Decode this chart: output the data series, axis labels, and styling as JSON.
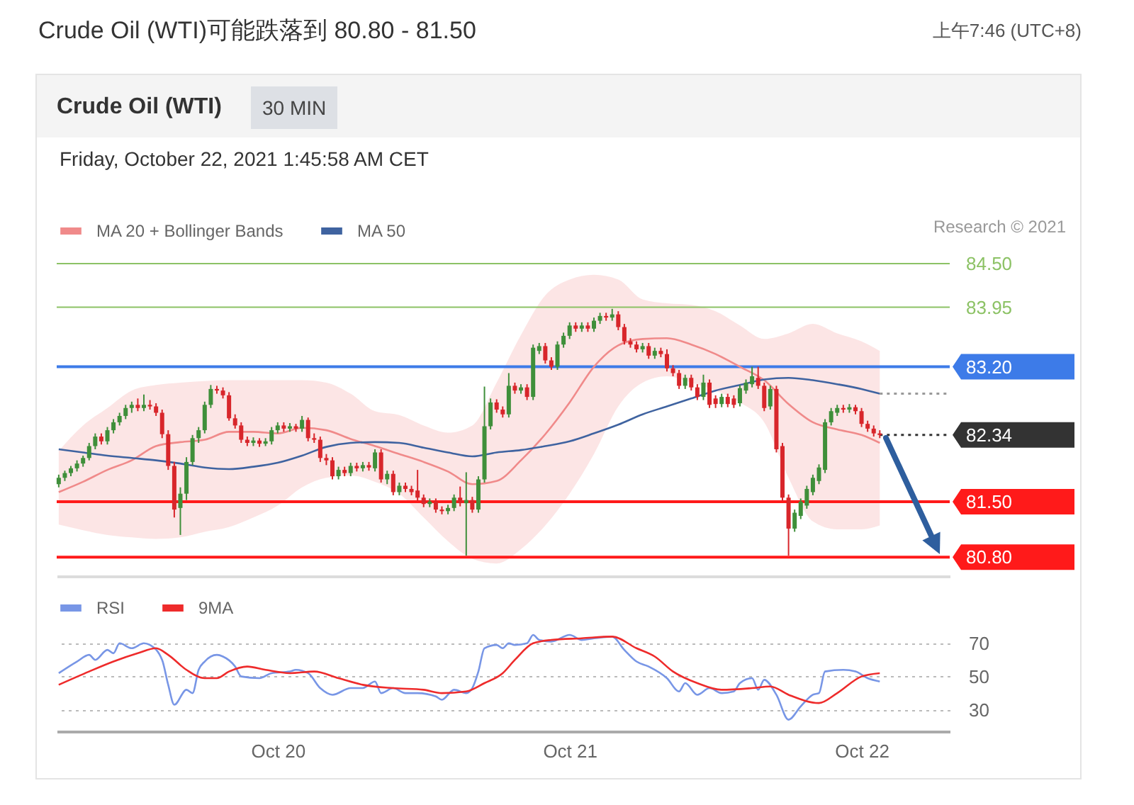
{
  "chart_data": [
    {
      "type": "candlestick",
      "title": "Crude Oil (WTI)可能跌落到 80.80 - 81.50",
      "subtitle": "Crude Oil (WTI)",
      "annotations": [
        "上午7:46 (UTC+8)",
        "30 MIN",
        "Friday, October 22, 2021 1:45:58 AM CET",
        "Research © 2021"
      ],
      "x": [
        "2021-10-19T06:00",
        "2021-10-19T06:30",
        "2021-10-19T07:00",
        "2021-10-19T07:30",
        "2021-10-19T08:00",
        "2021-10-19T08:30",
        "2021-10-19T09:00",
        "2021-10-19T09:30",
        "2021-10-19T10:00",
        "2021-10-19T10:30",
        "2021-10-19T11:00",
        "2021-10-19T11:30",
        "2021-10-19T12:00",
        "2021-10-19T12:30",
        "2021-10-19T13:00",
        "2021-10-19T13:30",
        "2021-10-19T14:00",
        "2021-10-19T14:30",
        "2021-10-19T15:00",
        "2021-10-19T15:30",
        "2021-10-19T16:00",
        "2021-10-19T16:30",
        "2021-10-19T17:00",
        "2021-10-19T17:30",
        "2021-10-19T18:00",
        "2021-10-19T18:30",
        "2021-10-19T19:00",
        "2021-10-19T19:30",
        "2021-10-19T20:00",
        "2021-10-19T20:30",
        "2021-10-19T21:00",
        "2021-10-19T21:30",
        "2021-10-19T22:00",
        "2021-10-19T22:30",
        "2021-10-19T23:00",
        "2021-10-19T23:30",
        "2021-10-20T00:00",
        "2021-10-20T00:30",
        "2021-10-20T01:00",
        "2021-10-20T01:30",
        "2021-10-20T02:00",
        "2021-10-20T02:30",
        "2021-10-20T03:00",
        "2021-10-20T03:30",
        "2021-10-20T04:00",
        "2021-10-20T04:30",
        "2021-10-20T05:00",
        "2021-10-20T05:30",
        "2021-10-20T06:00",
        "2021-10-20T06:30",
        "2021-10-20T07:00",
        "2021-10-20T07:30",
        "2021-10-20T08:00",
        "2021-10-20T08:30",
        "2021-10-20T09:00",
        "2021-10-20T09:30",
        "2021-10-20T10:00",
        "2021-10-20T10:30",
        "2021-10-20T11:00",
        "2021-10-20T11:30",
        "2021-10-20T12:00",
        "2021-10-20T12:30",
        "2021-10-20T13:00",
        "2021-10-20T13:30",
        "2021-10-20T14:00",
        "2021-10-20T14:30",
        "2021-10-20T15:00",
        "2021-10-20T15:30",
        "2021-10-20T16:00",
        "2021-10-20T16:30",
        "2021-10-20T17:00",
        "2021-10-20T17:30",
        "2021-10-20T18:00",
        "2021-10-20T18:30",
        "2021-10-20T19:00",
        "2021-10-20T19:30",
        "2021-10-20T20:00",
        "2021-10-20T20:30",
        "2021-10-20T21:00",
        "2021-10-20T21:30",
        "2021-10-20T22:00",
        "2021-10-20T22:30",
        "2021-10-20T23:00",
        "2021-10-20T23:30",
        "2021-10-21T00:00",
        "2021-10-21T00:30",
        "2021-10-21T01:00",
        "2021-10-21T01:30",
        "2021-10-21T02:00",
        "2021-10-21T02:30",
        "2021-10-21T03:00",
        "2021-10-21T03:30",
        "2021-10-21T04:00",
        "2021-10-21T04:30",
        "2021-10-21T05:00",
        "2021-10-21T05:30",
        "2021-10-21T06:00",
        "2021-10-21T06:30",
        "2021-10-21T07:00",
        "2021-10-21T07:30",
        "2021-10-21T08:00",
        "2021-10-21T08:30",
        "2021-10-21T09:00",
        "2021-10-21T09:30",
        "2021-10-21T10:00",
        "2021-10-21T10:30",
        "2021-10-21T11:00",
        "2021-10-21T11:30",
        "2021-10-21T12:00",
        "2021-10-21T12:30",
        "2021-10-21T13:00",
        "2021-10-21T13:30",
        "2021-10-21T14:00",
        "2021-10-21T14:30",
        "2021-10-21T15:00",
        "2021-10-21T15:30",
        "2021-10-21T16:00",
        "2021-10-21T16:30",
        "2021-10-21T17:00",
        "2021-10-21T17:30",
        "2021-10-21T18:00",
        "2021-10-21T18:30",
        "2021-10-21T19:00",
        "2021-10-21T19:30",
        "2021-10-21T20:00",
        "2021-10-21T20:30",
        "2021-10-21T21:00",
        "2021-10-21T21:30",
        "2021-10-21T22:00",
        "2021-10-21T22:30",
        "2021-10-21T23:00",
        "2021-10-21T23:30",
        "2021-10-22T00:00",
        "2021-10-22T00:30",
        "2021-10-22T01:00",
        "2021-10-22T01:30"
      ],
      "ohlc": [
        [
          81.72,
          81.84,
          81.68,
          81.8
        ],
        [
          81.8,
          81.89,
          81.76,
          81.86
        ],
        [
          81.86,
          81.95,
          81.82,
          81.92
        ],
        [
          81.92,
          82.02,
          81.88,
          81.98
        ],
        [
          81.98,
          82.08,
          81.94,
          82.05
        ],
        [
          82.05,
          82.24,
          82.02,
          82.2
        ],
        [
          82.2,
          82.36,
          82.16,
          82.32
        ],
        [
          82.32,
          82.36,
          82.22,
          82.26
        ],
        [
          82.26,
          82.44,
          82.22,
          82.4
        ],
        [
          82.4,
          82.54,
          82.36,
          82.5
        ],
        [
          82.5,
          82.62,
          82.46,
          82.58
        ],
        [
          82.58,
          82.72,
          82.54,
          82.68
        ],
        [
          82.68,
          82.76,
          82.62,
          82.72
        ],
        [
          82.72,
          82.8,
          82.64,
          82.68
        ],
        [
          82.68,
          82.85,
          82.64,
          82.72
        ],
        [
          82.72,
          82.78,
          82.66,
          82.7
        ],
        [
          82.7,
          82.74,
          82.58,
          82.62
        ],
        [
          82.62,
          82.66,
          82.3,
          82.35
        ],
        [
          82.35,
          82.4,
          81.9,
          81.95
        ],
        [
          81.95,
          82.0,
          81.3,
          81.4
        ],
        [
          81.42,
          81.68,
          81.08,
          81.6
        ],
        [
          81.6,
          82.06,
          81.52,
          82.0
        ],
        [
          82.0,
          82.34,
          81.96,
          82.3
        ],
        [
          82.3,
          82.44,
          82.24,
          82.4
        ],
        [
          82.4,
          82.76,
          82.36,
          82.72
        ],
        [
          82.72,
          82.97,
          82.68,
          82.92
        ],
        [
          82.92,
          82.96,
          82.86,
          82.9
        ],
        [
          82.9,
          82.94,
          82.8,
          82.84
        ],
        [
          82.84,
          82.88,
          82.52,
          82.55
        ],
        [
          82.55,
          82.6,
          82.42,
          82.46
        ],
        [
          82.46,
          82.5,
          82.24,
          82.28
        ],
        [
          82.28,
          82.32,
          82.2,
          82.24
        ],
        [
          82.24,
          82.31,
          82.2,
          82.27
        ],
        [
          82.27,
          82.3,
          82.19,
          82.23
        ],
        [
          82.23,
          82.3,
          82.2,
          82.26
        ],
        [
          82.26,
          82.44,
          82.22,
          82.4
        ],
        [
          82.4,
          82.5,
          82.36,
          82.46
        ],
        [
          82.46,
          82.5,
          82.38,
          82.42
        ],
        [
          82.42,
          82.49,
          82.38,
          82.45
        ],
        [
          82.45,
          82.48,
          82.38,
          82.42
        ],
        [
          82.42,
          82.58,
          82.38,
          82.53
        ],
        [
          82.53,
          82.56,
          82.26,
          82.3
        ],
        [
          82.3,
          82.36,
          82.24,
          82.28
        ],
        [
          82.28,
          82.32,
          82.0,
          82.05
        ],
        [
          82.05,
          82.1,
          81.96,
          82.02
        ],
        [
          82.02,
          82.06,
          81.78,
          81.82
        ],
        [
          81.82,
          81.94,
          81.78,
          81.9
        ],
        [
          81.9,
          81.94,
          81.82,
          81.86
        ],
        [
          81.86,
          81.99,
          81.82,
          81.95
        ],
        [
          81.95,
          81.99,
          81.88,
          81.92
        ],
        [
          81.92,
          82.0,
          81.88,
          81.96
        ],
        [
          81.96,
          82.0,
          81.89,
          81.93
        ],
        [
          81.92,
          82.16,
          81.88,
          82.12
        ],
        [
          82.12,
          82.16,
          81.74,
          81.78
        ],
        [
          81.78,
          81.89,
          81.72,
          81.85
        ],
        [
          81.85,
          81.89,
          81.58,
          81.62
        ],
        [
          81.62,
          81.74,
          81.58,
          81.7
        ],
        [
          81.7,
          81.74,
          81.62,
          81.66
        ],
        [
          81.66,
          81.7,
          81.58,
          81.62
        ],
        [
          81.64,
          81.9,
          81.51,
          81.55
        ],
        [
          81.55,
          81.59,
          81.43,
          81.47
        ],
        [
          81.47,
          81.54,
          81.43,
          81.5
        ],
        [
          81.5,
          81.54,
          81.36,
          81.4
        ],
        [
          81.4,
          81.44,
          81.34,
          81.38
        ],
        [
          81.38,
          81.46,
          81.34,
          81.42
        ],
        [
          81.42,
          81.59,
          81.38,
          81.55
        ],
        [
          81.55,
          81.69,
          81.44,
          81.48
        ],
        [
          81.48,
          81.87,
          80.82,
          81.52
        ],
        [
          81.52,
          81.56,
          81.36,
          81.4
        ],
        [
          81.4,
          81.82,
          81.36,
          81.78
        ],
        [
          81.78,
          82.95,
          81.74,
          82.45
        ],
        [
          82.45,
          82.8,
          82.41,
          82.75
        ],
        [
          82.75,
          82.79,
          82.62,
          82.66
        ],
        [
          82.66,
          82.7,
          82.56,
          82.6
        ],
        [
          82.6,
          83.12,
          82.56,
          82.96
        ],
        [
          82.96,
          83.0,
          82.86,
          82.9
        ],
        [
          82.9,
          82.98,
          82.86,
          82.94
        ],
        [
          82.94,
          82.98,
          82.78,
          82.82
        ],
        [
          82.82,
          83.48,
          82.78,
          83.44
        ],
        [
          83.4,
          83.5,
          83.36,
          83.46
        ],
        [
          83.46,
          83.5,
          83.24,
          83.28
        ],
        [
          83.28,
          83.32,
          83.16,
          83.2
        ],
        [
          83.2,
          83.52,
          83.16,
          83.48
        ],
        [
          83.48,
          83.63,
          83.44,
          83.59
        ],
        [
          83.59,
          83.76,
          83.55,
          83.72
        ],
        [
          83.72,
          83.76,
          83.64,
          83.68
        ],
        [
          83.68,
          83.76,
          83.64,
          83.72
        ],
        [
          83.72,
          83.76,
          83.64,
          83.68
        ],
        [
          83.68,
          83.82,
          83.64,
          83.78
        ],
        [
          83.78,
          83.88,
          83.74,
          83.84
        ],
        [
          83.84,
          83.88,
          83.78,
          83.82
        ],
        [
          83.82,
          83.93,
          83.78,
          83.86
        ],
        [
          83.86,
          83.9,
          83.66,
          83.7
        ],
        [
          83.7,
          83.74,
          83.48,
          83.52
        ],
        [
          83.52,
          83.56,
          83.44,
          83.48
        ],
        [
          83.48,
          83.52,
          83.38,
          83.42
        ],
        [
          83.42,
          83.5,
          83.38,
          83.46
        ],
        [
          83.46,
          83.5,
          83.3,
          83.34
        ],
        [
          83.34,
          83.44,
          83.3,
          83.4
        ],
        [
          83.4,
          83.44,
          83.32,
          83.36
        ],
        [
          83.36,
          83.42,
          83.14,
          83.18
        ],
        [
          83.18,
          83.22,
          83.08,
          83.12
        ],
        [
          83.12,
          83.16,
          82.92,
          82.96
        ],
        [
          82.96,
          83.1,
          82.92,
          83.06
        ],
        [
          83.06,
          83.1,
          82.9,
          82.94
        ],
        [
          82.94,
          82.98,
          82.78,
          82.82
        ],
        [
          82.82,
          83.1,
          82.78,
          83.0
        ],
        [
          83.0,
          83.04,
          82.68,
          82.72
        ],
        [
          82.8,
          82.84,
          82.68,
          82.73
        ],
        [
          82.73,
          82.86,
          82.69,
          82.82
        ],
        [
          82.82,
          82.86,
          82.69,
          82.73
        ],
        [
          82.8,
          82.84,
          82.68,
          82.72
        ],
        [
          82.74,
          82.97,
          82.7,
          82.93
        ],
        [
          82.9,
          83.04,
          82.86,
          83.0
        ],
        [
          82.98,
          83.2,
          82.94,
          83.08
        ],
        [
          83.06,
          83.2,
          82.92,
          82.96
        ],
        [
          82.96,
          83.0,
          82.64,
          82.68
        ],
        [
          82.7,
          82.96,
          82.66,
          82.92
        ],
        [
          82.92,
          82.96,
          82.12,
          82.16
        ],
        [
          82.2,
          82.24,
          81.51,
          81.55
        ],
        [
          81.55,
          81.59,
          80.82,
          81.16
        ],
        [
          81.16,
          81.4,
          81.12,
          81.36
        ],
        [
          81.32,
          81.54,
          81.28,
          81.5
        ],
        [
          81.45,
          81.7,
          81.41,
          81.66
        ],
        [
          81.62,
          81.84,
          81.58,
          81.8
        ],
        [
          81.76,
          81.97,
          81.72,
          81.93
        ],
        [
          81.9,
          82.54,
          81.86,
          82.5
        ],
        [
          82.5,
          82.68,
          82.46,
          82.64
        ],
        [
          82.62,
          82.72,
          82.58,
          82.68
        ],
        [
          82.68,
          82.72,
          82.62,
          82.66
        ],
        [
          82.66,
          82.73,
          82.62,
          82.69
        ],
        [
          82.69,
          82.72,
          82.6,
          82.64
        ],
        [
          82.64,
          82.68,
          82.44,
          82.48
        ],
        [
          82.48,
          82.52,
          82.38,
          82.42
        ],
        [
          82.42,
          82.46,
          82.32,
          82.36
        ],
        [
          82.36,
          82.4,
          82.3,
          82.34
        ]
      ],
      "series": [
        {
          "type": "line",
          "name": "MA 20 + Bollinger Bands",
          "color": "#f08a8a",
          "x": [
            "2021-10-19T06:00",
            "2021-10-19T08:00",
            "2021-10-19T10:00",
            "2021-10-19T12:00",
            "2021-10-19T14:00",
            "2021-10-19T16:00",
            "2021-10-19T18:00",
            "2021-10-19T20:00",
            "2021-10-19T22:00",
            "2021-10-20T00:00",
            "2021-10-20T02:00",
            "2021-10-20T04:00",
            "2021-10-20T06:00",
            "2021-10-20T08:00",
            "2021-10-20T10:00",
            "2021-10-20T12:00",
            "2021-10-20T14:00",
            "2021-10-20T16:00",
            "2021-10-20T18:00",
            "2021-10-20T20:00",
            "2021-10-20T22:00",
            "2021-10-21T00:00",
            "2021-10-21T02:00",
            "2021-10-21T04:00",
            "2021-10-21T06:00",
            "2021-10-21T08:00",
            "2021-10-21T10:00",
            "2021-10-21T12:00",
            "2021-10-21T14:00",
            "2021-10-21T16:00",
            "2021-10-21T18:00",
            "2021-10-21T20:00",
            "2021-10-21T22:00",
            "2021-10-22T00:00",
            "2021-10-22T01:30"
          ],
          "values": [
            81.62,
            81.75,
            81.9,
            82.02,
            82.2,
            82.25,
            82.28,
            82.38,
            82.38,
            82.36,
            82.43,
            82.4,
            82.29,
            82.2,
            82.1,
            82.0,
            81.88,
            81.72,
            81.76,
            82.02,
            82.35,
            82.75,
            83.2,
            83.47,
            83.55,
            83.56,
            83.48,
            83.36,
            83.2,
            83.03,
            82.73,
            82.5,
            82.41,
            82.34,
            82.24
          ],
          "upper": [
            82.14,
            82.46,
            82.68,
            82.9,
            82.97,
            83.0,
            83.02,
            83.03,
            83.03,
            83.03,
            83.03,
            83.0,
            82.86,
            82.64,
            82.59,
            82.46,
            82.37,
            82.46,
            83.0,
            83.6,
            84.1,
            84.3,
            84.36,
            84.3,
            84.05,
            84.0,
            83.98,
            83.9,
            83.72,
            83.55,
            83.62,
            83.74,
            83.62,
            83.52,
            83.4
          ],
          "lower": [
            81.21,
            81.14,
            81.08,
            81.05,
            81.03,
            81.05,
            81.12,
            81.18,
            81.3,
            81.45,
            81.68,
            81.8,
            81.83,
            81.75,
            81.6,
            81.3,
            81.0,
            80.78,
            80.72,
            80.9,
            81.2,
            81.6,
            82.1,
            82.7,
            83.0,
            83.08,
            83.0,
            82.9,
            82.75,
            82.5,
            81.8,
            81.25,
            81.15,
            81.15,
            81.2
          ]
        },
        {
          "type": "line",
          "name": "MA 50",
          "color": "#3f63a0",
          "x": [
            "2021-10-19T06:00",
            "2021-10-19T08:00",
            "2021-10-19T10:00",
            "2021-10-19T12:00",
            "2021-10-19T14:00",
            "2021-10-19T16:00",
            "2021-10-19T18:00",
            "2021-10-19T20:00",
            "2021-10-19T22:00",
            "2021-10-20T00:00",
            "2021-10-20T02:00",
            "2021-10-20T04:00",
            "2021-10-20T06:00",
            "2021-10-20T08:00",
            "2021-10-20T10:00",
            "2021-10-20T12:00",
            "2021-10-20T14:00",
            "2021-10-20T16:00",
            "2021-10-20T18:00",
            "2021-10-20T20:00",
            "2021-10-20T22:00",
            "2021-10-21T00:00",
            "2021-10-21T02:00",
            "2021-10-21T04:00",
            "2021-10-21T06:00",
            "2021-10-21T08:00",
            "2021-10-21T10:00",
            "2021-10-21T12:00",
            "2021-10-21T14:00",
            "2021-10-21T16:00",
            "2021-10-21T18:00",
            "2021-10-21T20:00",
            "2021-10-21T22:00",
            "2021-10-22T00:00",
            "2021-10-22T01:30"
          ],
          "values": [
            82.16,
            82.12,
            82.08,
            82.05,
            82.02,
            81.98,
            81.93,
            81.91,
            81.94,
            81.99,
            82.08,
            82.19,
            82.24,
            82.25,
            82.24,
            82.18,
            82.12,
            82.07,
            82.12,
            82.15,
            82.2,
            82.26,
            82.36,
            82.47,
            82.6,
            82.7,
            82.8,
            82.9,
            82.97,
            83.04,
            83.06,
            83.03,
            82.98,
            82.92,
            82.86
          ]
        },
        {
          "type": "line",
          "color": "#999999",
          "line_style": "dotted",
          "x": [
            "2021-10-22T01:30",
            "2021-10-22T07:15"
          ],
          "values": [
            82.86,
            82.86
          ]
        },
        {
          "type": "line",
          "color": "#333333",
          "line_style": "dotted",
          "x": [
            "2021-10-22T01:30",
            "2021-10-22T07:15"
          ],
          "values": [
            82.34,
            82.34
          ]
        }
      ],
      "xlim": [
        "2021-10-19T05:50",
        "2021-10-22T07:15"
      ],
      "ylim": [
        80.57,
        84.5
      ],
      "yticks": [
        {
          "value": 80.8,
          "label": "80.80"
        },
        {
          "value": 81.5,
          "label": "81.50"
        },
        82.34,
        {
          "value": 83.2,
          "label": "83.20"
        },
        83.95,
        {
          "value": 84.5,
          "label": "84.50"
        }
      ],
      "ref_lines": [
        {
          "axis": "y",
          "value": 84.5,
          "color": "#8cc265"
        },
        {
          "axis": "y",
          "value": 83.95,
          "color": "#8cc265"
        },
        {
          "axis": "y",
          "value": 83.2,
          "color": "#3d7be8"
        },
        {
          "axis": "y",
          "value": 81.5,
          "color": "#ff1a1a"
        },
        {
          "axis": "y",
          "value": 80.8,
          "color": "#ff1a1a"
        }
      ],
      "legend": "top left",
      "tick_labels": "y"
    },
    {
      "type": "line",
      "series": [
        {
          "name": "RSI",
          "color": "#7896e6",
          "x": [
            "2021-10-19T06:00",
            "2021-10-19T07:30",
            "2021-10-19T08:30",
            "2021-10-19T09:00",
            "2021-10-19T10:00",
            "2021-10-19T10:30",
            "2021-10-19T11:00",
            "2021-10-19T12:00",
            "2021-10-19T13:00",
            "2021-10-19T13:30",
            "2021-10-19T14:30",
            "2021-10-19T15:00",
            "2021-10-19T15:30",
            "2021-10-19T16:30",
            "2021-10-19T17:00",
            "2021-10-19T17:30",
            "2021-10-19T18:00",
            "2021-10-19T19:00",
            "2021-10-19T19:30",
            "2021-10-19T20:30",
            "2021-10-19T21:00",
            "2021-10-19T22:30",
            "2021-10-19T23:30",
            "2021-10-20T01:00",
            "2021-10-20T01:30",
            "2021-10-20T02:30",
            "2021-10-20T03:30",
            "2021-10-20T04:30",
            "2021-10-20T06:00",
            "2021-10-20T07:00",
            "2021-10-20T08:00",
            "2021-10-20T08:30",
            "2021-10-20T09:30",
            "2021-10-20T10:30",
            "2021-10-20T11:30",
            "2021-10-20T13:00",
            "2021-10-20T13:30",
            "2021-10-20T14:30",
            "2021-10-20T15:30",
            "2021-10-20T16:00",
            "2021-10-20T16:30",
            "2021-10-20T17:00",
            "2021-10-20T18:00",
            "2021-10-20T18:30",
            "2021-10-20T19:00",
            "2021-10-20T19:30",
            "2021-10-20T20:30",
            "2021-10-20T21:00",
            "2021-10-20T21:30",
            "2021-10-20T22:30",
            "2021-10-21T00:00",
            "2021-10-21T01:00",
            "2021-10-21T02:00",
            "2021-10-21T03:30",
            "2021-10-21T04:30",
            "2021-10-21T05:30",
            "2021-10-21T06:30",
            "2021-10-21T08:00",
            "2021-10-21T09:00",
            "2021-10-21T09:30",
            "2021-10-21T10:30",
            "2021-10-21T11:30",
            "2021-10-21T12:30",
            "2021-10-21T13:30",
            "2021-10-21T14:00",
            "2021-10-21T15:00",
            "2021-10-21T15:30",
            "2021-10-21T16:00",
            "2021-10-21T17:00",
            "2021-10-21T18:00",
            "2021-10-21T19:00",
            "2021-10-21T20:00",
            "2021-10-21T20:30",
            "2021-10-21T21:00",
            "2021-10-21T22:30",
            "2021-10-21T23:30",
            "2021-10-22T00:30",
            "2021-10-22T01:30"
          ],
          "values": [
            52,
            59,
            63,
            60,
            66,
            64,
            70,
            67,
            70,
            69,
            60,
            45,
            33,
            42,
            40,
            54,
            59,
            63,
            62,
            56,
            50,
            49,
            52,
            53,
            54,
            52,
            43,
            39,
            43,
            43,
            47,
            40,
            43,
            40,
            40,
            38,
            36,
            42,
            40,
            43,
            53,
            67,
            69,
            67,
            70,
            69,
            70,
            75,
            72,
            71,
            75,
            72,
            73,
            74,
            66,
            59,
            56,
            49,
            41,
            46,
            39,
            43,
            40,
            41,
            46,
            49,
            42,
            48,
            39,
            24,
            32,
            39,
            40,
            53,
            54,
            53,
            49,
            47
          ]
        },
        {
          "name": "9MA",
          "color": "#ee2b2b",
          "x": [
            "2021-10-19T06:00",
            "2021-10-19T08:30",
            "2021-10-19T10:30",
            "2021-10-19T12:30",
            "2021-10-19T14:00",
            "2021-10-19T15:00",
            "2021-10-19T16:30",
            "2021-10-19T18:00",
            "2021-10-19T19:00",
            "2021-10-19T20:00",
            "2021-10-19T21:30",
            "2021-10-19T23:00",
            "2021-10-20T01:00",
            "2021-10-20T03:00",
            "2021-10-20T05:00",
            "2021-10-20T07:00",
            "2021-10-20T09:30",
            "2021-10-20T12:00",
            "2021-10-20T13:30",
            "2021-10-20T15:30",
            "2021-10-20T17:00",
            "2021-10-20T18:30",
            "2021-10-20T19:30",
            "2021-10-20T21:00",
            "2021-10-20T22:30",
            "2021-10-21T01:00",
            "2021-10-21T03:30",
            "2021-10-21T05:30",
            "2021-10-21T07:00",
            "2021-10-21T08:30",
            "2021-10-21T10:30",
            "2021-10-21T12:30",
            "2021-10-21T15:00",
            "2021-10-21T16:30",
            "2021-10-21T18:00",
            "2021-10-21T20:30",
            "2021-10-21T22:00",
            "2021-10-22T00:00",
            "2021-10-22T01:30"
          ],
          "values": [
            45,
            53,
            59,
            64,
            67,
            63,
            54,
            49,
            49,
            53,
            56,
            54,
            52,
            53,
            49,
            45,
            43,
            42,
            40,
            41,
            46,
            52,
            60,
            70,
            72,
            73,
            74,
            67,
            62,
            53,
            46,
            42,
            43,
            44,
            39,
            34,
            40,
            50,
            52
          ]
        }
      ],
      "xlim": [
        "2021-10-19T05:50",
        "2021-10-22T07:15"
      ],
      "xticks": [
        {
          "value": "2021-10-20",
          "label": "Oct 20"
        },
        {
          "value": "2021-10-21",
          "label": "Oct 21"
        },
        {
          "value": "2021-10-22",
          "label": "Oct 22"
        }
      ],
      "ylim": [
        17,
        110
      ],
      "yticks": [
        30,
        50,
        70
      ],
      "grid": "y",
      "legend": "top left"
    }
  ]
}
